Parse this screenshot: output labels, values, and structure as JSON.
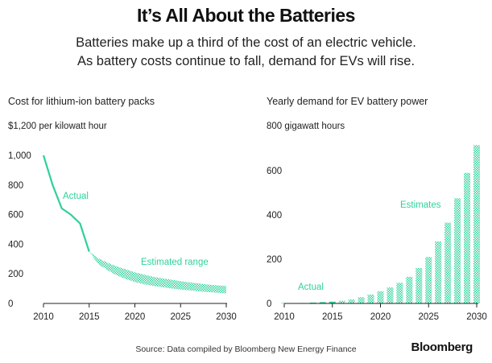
{
  "title": "It’s All About the Batteries",
  "subtitle_lines": [
    "Batteries make up a third of the cost of an electric vehicle.",
    "As battery costs continue to fall, demand for EVs will rise."
  ],
  "source": "Source: Data compiled by Bloomberg New Energy Finance",
  "brand": "Bloomberg",
  "colors": {
    "accent": "#2fd19a",
    "axis": "#222222",
    "text": "#222222"
  },
  "chart_data": [
    {
      "type": "line",
      "title": "Cost for lithium-ion battery packs",
      "unit_label": "$1,200 per kilowatt hour",
      "xlim": [
        2010,
        2030
      ],
      "ylim": [
        0,
        1200
      ],
      "x_ticks": [
        2010,
        2015,
        2020,
        2025,
        2030
      ],
      "y_ticks": [
        {
          "value": 0,
          "label": "0"
        },
        {
          "value": 200,
          "label": "200"
        },
        {
          "value": 400,
          "label": "400"
        },
        {
          "value": 600,
          "label": "600"
        },
        {
          "value": 800,
          "label": "800"
        },
        {
          "value": 1000,
          "label": "1,000"
        }
      ],
      "actual": {
        "name": "Actual",
        "x": [
          2010,
          2011,
          2012,
          2013,
          2014,
          2015
        ],
        "y": [
          1000,
          800,
          642,
          599,
          540,
          350
        ]
      },
      "estimated_range": {
        "name": "Estimated range",
        "x": [
          2015,
          2016,
          2017,
          2018,
          2019,
          2020,
          2021,
          2022,
          2023,
          2024,
          2025,
          2026,
          2027,
          2028,
          2029,
          2030
        ],
        "upper": [
          350,
          305,
          275,
          250,
          230,
          210,
          195,
          180,
          170,
          160,
          150,
          142,
          135,
          128,
          122,
          118
        ],
        "lower": [
          350,
          265,
          225,
          190,
          165,
          145,
          130,
          118,
          110,
          101,
          94,
          88,
          82,
          77,
          72,
          68
        ]
      },
      "annotations": [
        "Actual",
        "Estimated range"
      ]
    },
    {
      "type": "bar",
      "title": "Yearly demand for EV battery power",
      "unit_label": "800 gigawatt hours",
      "xlim": [
        2010,
        2030
      ],
      "ylim": [
        0,
        800
      ],
      "x_ticks": [
        2010,
        2015,
        2020,
        2025,
        2030
      ],
      "y_ticks": [
        {
          "value": 0,
          "label": "0"
        },
        {
          "value": 200,
          "label": "200"
        },
        {
          "value": 400,
          "label": "400"
        },
        {
          "value": 600,
          "label": "600"
        }
      ],
      "x": [
        2010,
        2011,
        2012,
        2013,
        2014,
        2015,
        2016,
        2017,
        2018,
        2019,
        2020,
        2021,
        2022,
        2023,
        2024,
        2025,
        2026,
        2027,
        2028,
        2029,
        2030
      ],
      "values": [
        0.5,
        1,
        2,
        4,
        6,
        8,
        12,
        18,
        28,
        40,
        55,
        72,
        93,
        120,
        160,
        210,
        280,
        365,
        475,
        590,
        715
      ],
      "actual_through": 2015,
      "annotations": [
        "Actual",
        "Estimates"
      ]
    }
  ]
}
